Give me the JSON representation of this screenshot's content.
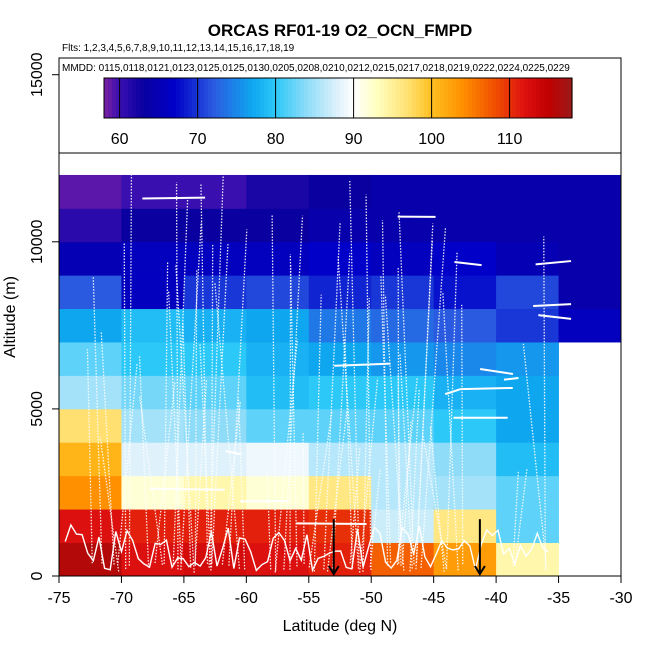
{
  "chart_data": {
    "type": "heatmap",
    "title": "ORCAS RF01-19 O2_OCN_FMPD",
    "flights_label": "Flts: 1,2,3,4,5,6,7,8,9,10,11,12,13,14,15,16,17,18,19",
    "dates_label": "MMDD: 0115,0118,0121,0123,0125,0125,0130,0205,0208,0210,0212,0215,0217,0218,0219,0222,0224,0225,0229",
    "xlabel": "Latitude (deg N)",
    "ylabel": "Altitude (m)",
    "xlim": [
      -75,
      -30
    ],
    "ylim": [
      0,
      15500
    ],
    "x_ticks": [
      -75,
      -70,
      -65,
      -60,
      -55,
      -50,
      -45,
      -40,
      -35,
      -30
    ],
    "y_ticks": [
      0,
      5000,
      10000,
      15000
    ],
    "colorbar": {
      "range": [
        58,
        118
      ],
      "ticks": [
        60,
        70,
        80,
        90,
        100,
        110
      ],
      "colors": [
        [
          58,
          "#7b1fa2"
        ],
        [
          60,
          "#3a0fb0"
        ],
        [
          63,
          "#0a00a0"
        ],
        [
          67,
          "#0000c8"
        ],
        [
          72,
          "#2a5ae0"
        ],
        [
          77,
          "#0fa6f0"
        ],
        [
          80,
          "#2cc8f8"
        ],
        [
          84,
          "#8fdcf8"
        ],
        [
          88,
          "#dff2fb"
        ],
        [
          90,
          "#ffffff"
        ],
        [
          93,
          "#ffffc0"
        ],
        [
          97,
          "#ffe070"
        ],
        [
          100,
          "#ffc020"
        ],
        [
          104,
          "#ff9000"
        ],
        [
          108,
          "#f05000"
        ],
        [
          112,
          "#dd1010"
        ],
        [
          115,
          "#c00000"
        ],
        [
          118,
          "#9b1a1a"
        ]
      ]
    },
    "lat_bins": [
      -75,
      -70,
      -65,
      -60,
      -55,
      -50,
      -45,
      -40,
      -35,
      -30
    ],
    "alt_bins": [
      0,
      1000,
      2000,
      3000,
      4000,
      5000,
      6000,
      7000,
      8000,
      9000,
      10000,
      11000,
      12000
    ],
    "cells": [
      [
        -75,
        0,
        116
      ],
      [
        -70,
        0,
        112
      ],
      [
        -65,
        0,
        113
      ],
      [
        -60,
        0,
        112
      ],
      [
        -55,
        0,
        111
      ],
      [
        -50,
        0,
        107
      ],
      [
        -45,
        0,
        103
      ],
      [
        -40,
        0,
        94
      ],
      [
        -75,
        1000,
        112
      ],
      [
        -70,
        1000,
        111
      ],
      [
        -65,
        1000,
        111
      ],
      [
        -60,
        1000,
        111
      ],
      [
        -55,
        1000,
        110
      ],
      [
        -50,
        1000,
        87
      ],
      [
        -45,
        1000,
        96
      ],
      [
        -40,
        1000,
        82
      ],
      [
        -75,
        2000,
        104
      ],
      [
        -70,
        2000,
        92
      ],
      [
        -65,
        2000,
        94
      ],
      [
        -60,
        2000,
        92
      ],
      [
        -55,
        2000,
        96
      ],
      [
        -50,
        2000,
        86
      ],
      [
        -45,
        2000,
        85
      ],
      [
        -40,
        2000,
        82
      ],
      [
        -75,
        3000,
        101
      ],
      [
        -70,
        3000,
        88
      ],
      [
        -65,
        3000,
        88
      ],
      [
        -60,
        3000,
        89
      ],
      [
        -55,
        3000,
        86
      ],
      [
        -50,
        3000,
        86
      ],
      [
        -45,
        3000,
        84
      ],
      [
        -40,
        3000,
        79
      ],
      [
        -75,
        4000,
        97
      ],
      [
        -70,
        4000,
        85
      ],
      [
        -65,
        4000,
        84
      ],
      [
        -60,
        4000,
        82
      ],
      [
        -55,
        4000,
        82
      ],
      [
        -50,
        4000,
        82
      ],
      [
        -45,
        4000,
        80
      ],
      [
        -40,
        4000,
        77
      ],
      [
        -75,
        5000,
        85
      ],
      [
        -70,
        5000,
        83
      ],
      [
        -65,
        5000,
        82
      ],
      [
        -60,
        5000,
        79
      ],
      [
        -55,
        5000,
        80
      ],
      [
        -50,
        5000,
        80
      ],
      [
        -45,
        5000,
        78
      ],
      [
        -40,
        5000,
        77
      ],
      [
        -75,
        6000,
        82
      ],
      [
        -70,
        6000,
        80
      ],
      [
        -65,
        6000,
        80
      ],
      [
        -60,
        6000,
        78
      ],
      [
        -55,
        6000,
        77
      ],
      [
        -50,
        6000,
        76
      ],
      [
        -45,
        6000,
        75
      ],
      [
        -40,
        6000,
        76
      ],
      [
        -75,
        7000,
        77
      ],
      [
        -70,
        7000,
        79
      ],
      [
        -65,
        7000,
        78
      ],
      [
        -60,
        7000,
        77
      ],
      [
        -55,
        7000,
        74
      ],
      [
        -50,
        7000,
        73
      ],
      [
        -45,
        7000,
        72
      ],
      [
        -40,
        7000,
        70
      ],
      [
        -35,
        7000,
        66
      ],
      [
        -75,
        8000,
        72
      ],
      [
        -70,
        8000,
        66
      ],
      [
        -65,
        8000,
        70
      ],
      [
        -60,
        8000,
        71
      ],
      [
        -55,
        8000,
        69
      ],
      [
        -50,
        8000,
        70
      ],
      [
        -45,
        8000,
        68
      ],
      [
        -40,
        8000,
        71
      ],
      [
        -35,
        8000,
        64
      ],
      [
        -75,
        9000,
        65
      ],
      [
        -70,
        9000,
        66
      ],
      [
        -65,
        9000,
        66
      ],
      [
        -60,
        9000,
        66
      ],
      [
        -55,
        9000,
        67
      ],
      [
        -50,
        9000,
        66
      ],
      [
        -45,
        9000,
        67
      ],
      [
        -40,
        9000,
        65
      ],
      [
        -35,
        9000,
        64
      ],
      [
        -75,
        10000,
        61
      ],
      [
        -70,
        10000,
        63
      ],
      [
        -65,
        10000,
        63
      ],
      [
        -60,
        10000,
        63
      ],
      [
        -55,
        10000,
        64
      ],
      [
        -50,
        10000,
        64
      ],
      [
        -45,
        10000,
        64
      ],
      [
        -40,
        10000,
        64
      ],
      [
        -35,
        10000,
        64
      ],
      [
        -75,
        11000,
        59
      ],
      [
        -70,
        11000,
        60
      ],
      [
        -65,
        11000,
        60
      ],
      [
        -60,
        11000,
        62
      ],
      [
        -55,
        11000,
        63
      ],
      [
        -50,
        11000,
        64
      ],
      [
        -45,
        11000,
        64
      ],
      [
        -40,
        11000,
        64
      ],
      [
        -35,
        11000,
        64
      ]
    ],
    "arrows_lat": [
      -53,
      -41.3
    ],
    "legend": "top (colorbar)"
  }
}
